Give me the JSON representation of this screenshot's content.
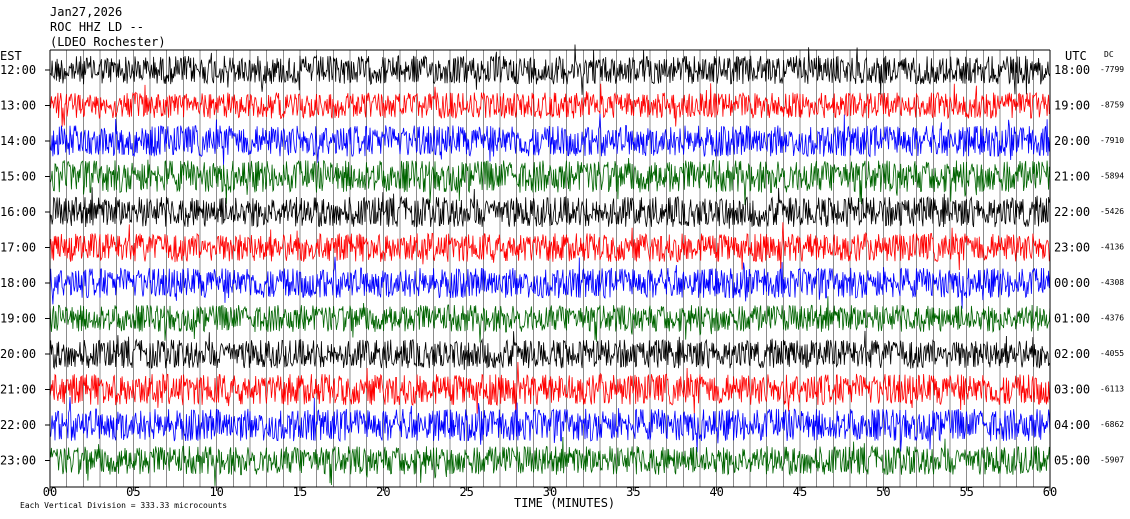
{
  "header": {
    "date": "Jan27,2026",
    "station": "ROC HHZ LD --",
    "location": "(LDEO Rochester)"
  },
  "chart_data": {
    "type": "line",
    "title": "",
    "xlabel": "TIME (MINUTES)",
    "x_ticks": [
      "00",
      "05",
      "10",
      "15",
      "20",
      "25",
      "30",
      "35",
      "40",
      "45",
      "50",
      "55",
      "60"
    ],
    "xlim": [
      0,
      60
    ],
    "left_axis_label": "EST",
    "right_axis_label": "UTC",
    "dc_label": "DC",
    "footnote": "Each Vertical Division = 333.33 microcounts",
    "grid": "vertical minute lines",
    "color_cycle": [
      "#000000",
      "#ff0000",
      "#0000ff",
      "#006400"
    ],
    "rows": [
      {
        "est": "12:00",
        "utc": "18:00",
        "dc": "-7799",
        "color": "#000000",
        "level": 0.55
      },
      {
        "est": "13:00",
        "utc": "19:00",
        "dc": "-8759",
        "color": "#ff0000",
        "level": 0.5
      },
      {
        "est": "14:00",
        "utc": "20:00",
        "dc": "-7910",
        "color": "#0000ff",
        "level": 0.6
      },
      {
        "est": "15:00",
        "utc": "21:00",
        "dc": "-5894",
        "color": "#006400",
        "level": 0.62
      },
      {
        "est": "16:00",
        "utc": "22:00",
        "dc": "-5426",
        "color": "#000000",
        "level": 0.58
      },
      {
        "est": "17:00",
        "utc": "23:00",
        "dc": "-4136",
        "color": "#ff0000",
        "level": 0.55
      },
      {
        "est": "18:00",
        "utc": "00:00",
        "dc": "-4308",
        "color": "#0000ff",
        "level": 0.58
      },
      {
        "est": "19:00",
        "utc": "01:00",
        "dc": "-4376",
        "color": "#006400",
        "level": 0.52
      },
      {
        "est": "20:00",
        "utc": "02:00",
        "dc": "-4055",
        "color": "#000000",
        "level": 0.55
      },
      {
        "est": "21:00",
        "utc": "03:00",
        "dc": "-6113",
        "color": "#ff0000",
        "level": 0.6
      },
      {
        "est": "22:00",
        "utc": "04:00",
        "dc": "-6862",
        "color": "#0000ff",
        "level": 0.62
      },
      {
        "est": "23:00",
        "utc": "05:00",
        "dc": "-5907",
        "color": "#006400",
        "level": 0.55
      }
    ]
  }
}
